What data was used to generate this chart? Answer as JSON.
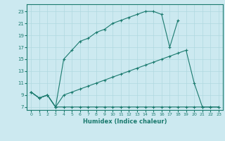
{
  "xlabel": "Humidex (Indice chaleur)",
  "background_color": "#cce9f0",
  "grid_color": "#b0d8e0",
  "line_color": "#1a7a6e",
  "xlim": [
    -0.5,
    23.5
  ],
  "ylim": [
    6.5,
    24.2
  ],
  "xticks": [
    0,
    1,
    2,
    3,
    4,
    5,
    6,
    7,
    8,
    9,
    10,
    11,
    12,
    13,
    14,
    15,
    16,
    17,
    18,
    19,
    20,
    21,
    22,
    23
  ],
  "yticks": [
    7,
    9,
    11,
    13,
    15,
    17,
    19,
    21,
    23
  ],
  "line1_x": [
    0,
    1,
    2,
    3,
    4,
    5,
    6,
    7,
    8,
    9,
    10,
    11,
    12,
    13,
    14,
    15,
    16,
    17,
    18,
    19,
    20,
    21,
    22,
    23
  ],
  "line1_y": [
    9.5,
    8.5,
    9.0,
    7.0,
    7.0,
    7.0,
    7.0,
    7.0,
    7.0,
    7.0,
    7.0,
    7.0,
    7.0,
    7.0,
    7.0,
    7.0,
    7.0,
    7.0,
    7.0,
    7.0,
    7.0,
    7.0,
    7.0,
    7.0
  ],
  "line2_x": [
    0,
    1,
    2,
    3,
    4,
    5,
    6,
    7,
    8,
    9,
    10,
    11,
    12,
    13,
    14,
    15,
    16,
    17,
    18,
    19,
    20,
    21,
    22,
    23
  ],
  "line2_y": [
    9.5,
    8.5,
    9.0,
    7.0,
    9.0,
    9.5,
    10.0,
    10.5,
    11.0,
    11.5,
    12.0,
    12.5,
    13.0,
    13.5,
    14.0,
    14.5,
    15.0,
    15.5,
    16.0,
    16.5,
    11.0,
    7.0,
    7.0,
    7.0
  ],
  "line3_x": [
    0,
    1,
    2,
    3,
    4,
    5,
    6,
    7,
    8,
    9,
    10,
    11,
    12,
    13,
    14,
    15,
    16,
    17,
    18
  ],
  "line3_y": [
    9.5,
    8.5,
    9.0,
    7.0,
    15.0,
    16.5,
    18.0,
    18.5,
    19.5,
    20.0,
    21.0,
    21.5,
    22.0,
    22.5,
    23.0,
    23.0,
    22.5,
    17.0,
    21.5
  ]
}
